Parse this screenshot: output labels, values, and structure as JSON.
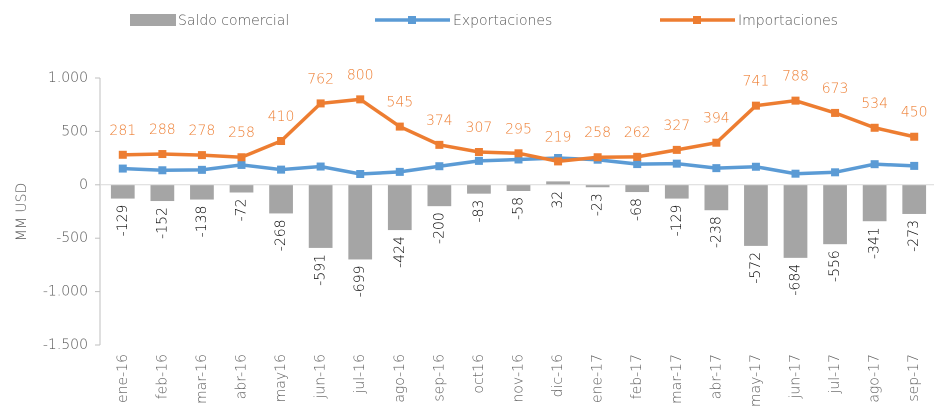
{
  "chart_data": {
    "type": "combo",
    "categories": [
      "ene-16",
      "feb-16",
      "mar-16",
      "abr-16",
      "may16",
      "jun-16",
      "jul-16",
      "ago-16",
      "sep-16",
      "oct16",
      "nov-16",
      "dic-16",
      "ene-17",
      "feb-17",
      "mar-17",
      "abr-17",
      "may-17",
      "jun-17",
      "jul-17",
      "ago-17",
      "sep-17"
    ],
    "series": [
      {
        "name": "Saldo comercial",
        "type": "bar",
        "color": "#a5a5a5",
        "values": [
          -129,
          -152,
          -138,
          -72,
          -268,
          -591,
          -699,
          -424,
          -200,
          -83,
          -58,
          32,
          -23,
          -68,
          -129,
          -238,
          -572,
          -684,
          -556,
          -341,
          -273
        ]
      },
      {
        "name": "Exportaciones",
        "type": "line",
        "color": "#5b9bd5",
        "values": [
          152,
          136,
          140,
          186,
          142,
          171,
          101,
          121,
          174,
          224,
          237,
          251,
          235,
          194,
          198,
          156,
          169,
          104,
          117,
          193,
          177
        ]
      },
      {
        "name": "Importaciones",
        "type": "line",
        "color": "#ed7d31",
        "values": [
          281,
          288,
          278,
          258,
          410,
          762,
          800,
          545,
          374,
          307,
          295,
          219,
          258,
          262,
          327,
          394,
          741,
          788,
          673,
          534,
          450
        ]
      }
    ],
    "labeled_series": [
      0,
      2
    ],
    "y_label": "MM USD",
    "ylim": [
      -1500,
      1000
    ],
    "yticks": [
      {
        "value": 1000,
        "label": "1.000"
      },
      500,
      0,
      -500,
      {
        "value": -1000,
        "label": "-1.000"
      },
      {
        "value": -1500,
        "label": "-1.500"
      }
    ],
    "legend": "top"
  }
}
